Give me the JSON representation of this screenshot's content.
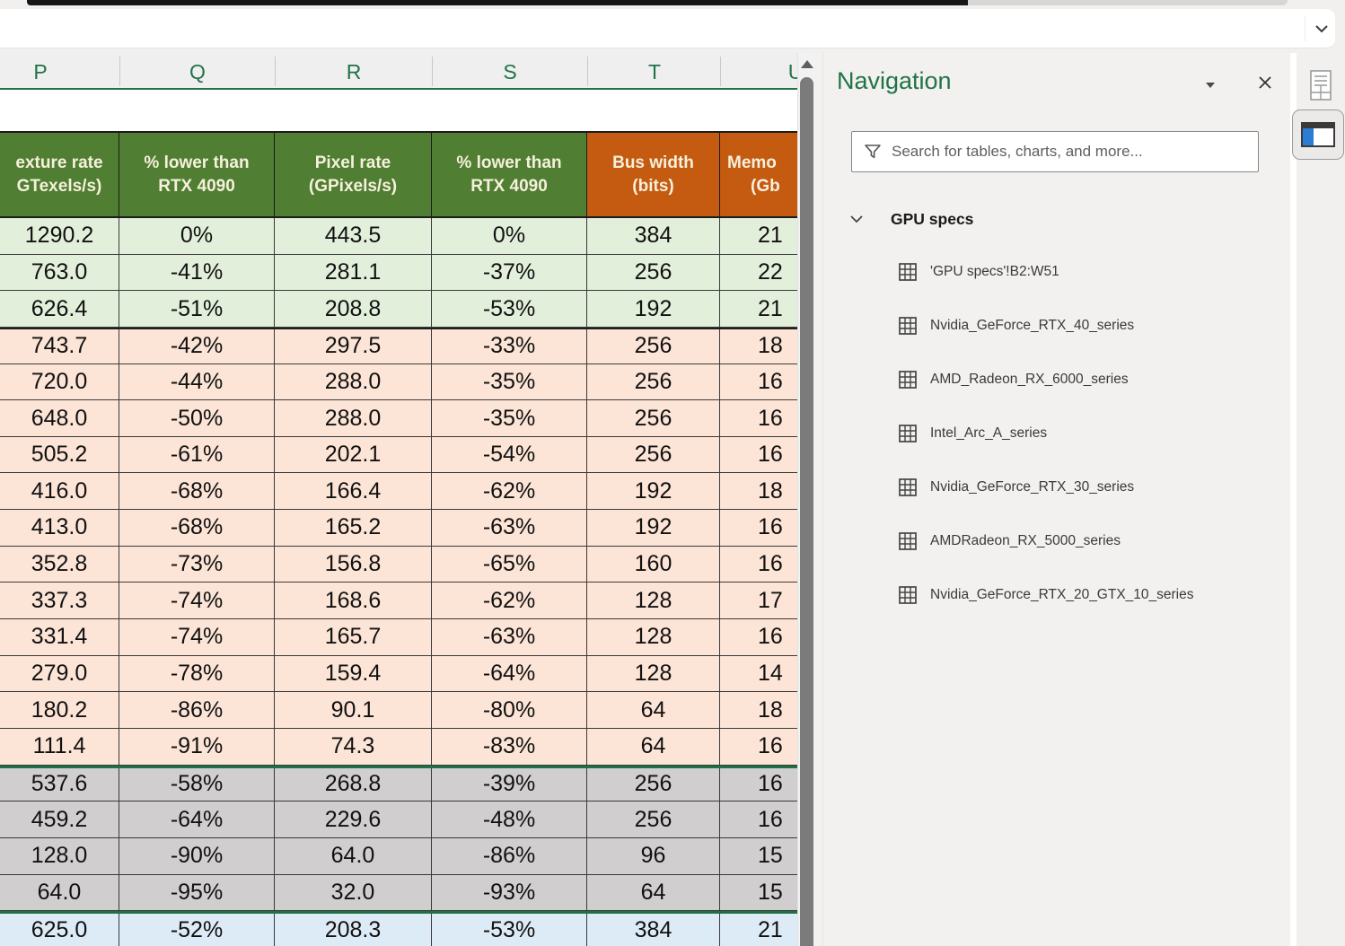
{
  "formula_bar": {
    "value": ""
  },
  "sheet": {
    "column_letters": [
      "P",
      "Q",
      "R",
      "S",
      "T",
      "U"
    ],
    "table": {
      "headers": [
        {
          "line1": "exture rate",
          "line2": "GTexels/s)",
          "tone": "green"
        },
        {
          "line1": "% lower than",
          "line2": "RTX 4090",
          "tone": "green"
        },
        {
          "line1": "Pixel rate",
          "line2": "(GPixels/s)",
          "tone": "green"
        },
        {
          "line1": "% lower than",
          "line2": "RTX 4090",
          "tone": "green"
        },
        {
          "line1": "Bus width",
          "line2": "(bits)",
          "tone": "orange"
        },
        {
          "line1": "Memo",
          "line2": "(Gb",
          "tone": "orange"
        }
      ],
      "sections": [
        {
          "tone": "green",
          "divider": "none",
          "rows": [
            [
              "1290.2",
              "0%",
              "443.5",
              "0%",
              "384",
              "21"
            ],
            [
              "763.0",
              "-41%",
              "281.1",
              "-37%",
              "256",
              "22"
            ],
            [
              "626.4",
              "-51%",
              "208.8",
              "-53%",
              "192",
              "21"
            ]
          ]
        },
        {
          "tone": "pink",
          "divider": "dark",
          "rows": [
            [
              "743.7",
              "-42%",
              "297.5",
              "-33%",
              "256",
              "18"
            ],
            [
              "720.0",
              "-44%",
              "288.0",
              "-35%",
              "256",
              "16"
            ],
            [
              "648.0",
              "-50%",
              "288.0",
              "-35%",
              "256",
              "16"
            ],
            [
              "505.2",
              "-61%",
              "202.1",
              "-54%",
              "256",
              "16"
            ],
            [
              "416.0",
              "-68%",
              "166.4",
              "-62%",
              "192",
              "18"
            ],
            [
              "413.0",
              "-68%",
              "165.2",
              "-63%",
              "192",
              "16"
            ],
            [
              "352.8",
              "-73%",
              "156.8",
              "-65%",
              "160",
              "16"
            ],
            [
              "337.3",
              "-74%",
              "168.6",
              "-62%",
              "128",
              "17"
            ],
            [
              "331.4",
              "-74%",
              "165.7",
              "-63%",
              "128",
              "16"
            ],
            [
              "279.0",
              "-78%",
              "159.4",
              "-64%",
              "128",
              "14"
            ],
            [
              "180.2",
              "-86%",
              "90.1",
              "-80%",
              "64",
              "18"
            ],
            [
              "111.4",
              "-91%",
              "74.3",
              "-83%",
              "64",
              "16"
            ]
          ]
        },
        {
          "tone": "gray",
          "divider": "green",
          "rows": [
            [
              "537.6",
              "-58%",
              "268.8",
              "-39%",
              "256",
              "16"
            ],
            [
              "459.2",
              "-64%",
              "229.6",
              "-48%",
              "256",
              "16"
            ],
            [
              "128.0",
              "-90%",
              "64.0",
              "-86%",
              "96",
              "15"
            ],
            [
              "64.0",
              "-95%",
              "32.0",
              "-93%",
              "64",
              "15"
            ]
          ]
        },
        {
          "tone": "blue",
          "divider": "green",
          "rows": [
            [
              "625.0",
              "-52%",
              "208.3",
              "-53%",
              "384",
              "21"
            ]
          ]
        }
      ]
    }
  },
  "navigation": {
    "title": "Navigation",
    "search_placeholder": "Search for tables, charts, and more...",
    "group": {
      "label": "GPU specs"
    },
    "items": [
      "'GPU specs'!B2:W51",
      "Nvidia_GeForce_RTX_40_series",
      "AMD_Radeon_RX_6000_series",
      "Intel_Arc_A_series",
      "Nvidia_GeForce_RTX_30_series",
      "AMDRadeon_RX_5000_series",
      "Nvidia_GeForce_RTX_20_GTX_10_series"
    ]
  },
  "colors": {
    "excel_green": "#217346",
    "header_green_fill": "#507E32",
    "header_orange_fill": "#C55A11",
    "header_text": "#F6F0DC",
    "row_green": "#E2EFDA",
    "row_pink": "#FCE4D6",
    "row_gray": "#D0CECE",
    "row_blue": "#DDEBF7",
    "section_divider_green": "#1E7145",
    "nav_panel_bg": "#F2F1F0",
    "pane_icon_blue": "#2B7CD3"
  }
}
